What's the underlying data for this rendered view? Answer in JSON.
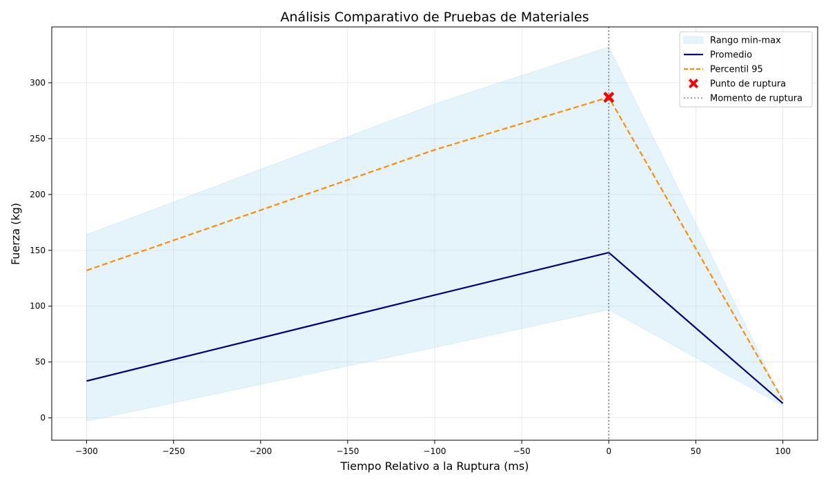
{
  "chart_data": {
    "type": "line",
    "title": "Análisis Comparativo de Pruebas de Materiales",
    "xlabel": "Tiempo Relativo a la Ruptura (ms)",
    "ylabel": "Fuerza (kg)",
    "xlim": [
      -320,
      120
    ],
    "ylim": [
      -20,
      350
    ],
    "grid": true,
    "legend_position": "top-right",
    "x": [
      -300,
      -100,
      0,
      100
    ],
    "xticks": [
      -300,
      -250,
      -200,
      -150,
      -100,
      -50,
      0,
      50,
      100
    ],
    "yticks": [
      0,
      50,
      100,
      150,
      200,
      250,
      300
    ],
    "band": {
      "name": "Rango min-max",
      "lower": [
        -3,
        63,
        97,
        11
      ],
      "upper": [
        164,
        281,
        332,
        15
      ],
      "color": "#87ceeb"
    },
    "series": [
      {
        "name": "Promedio",
        "values": [
          33,
          110,
          148,
          13
        ],
        "color": "#000080",
        "style": "solid"
      },
      {
        "name": "Percentil 95",
        "values": [
          132,
          240,
          287,
          16
        ],
        "color": "#ff8c00",
        "style": "dashed"
      }
    ],
    "marker": {
      "name": "Punto de ruptura",
      "x": 0,
      "y": 287,
      "color": "#ff0000",
      "symbol": "X"
    },
    "vline": {
      "name": "Momento de ruptura",
      "x": 0,
      "color": "#808080",
      "style": "dotted"
    }
  }
}
